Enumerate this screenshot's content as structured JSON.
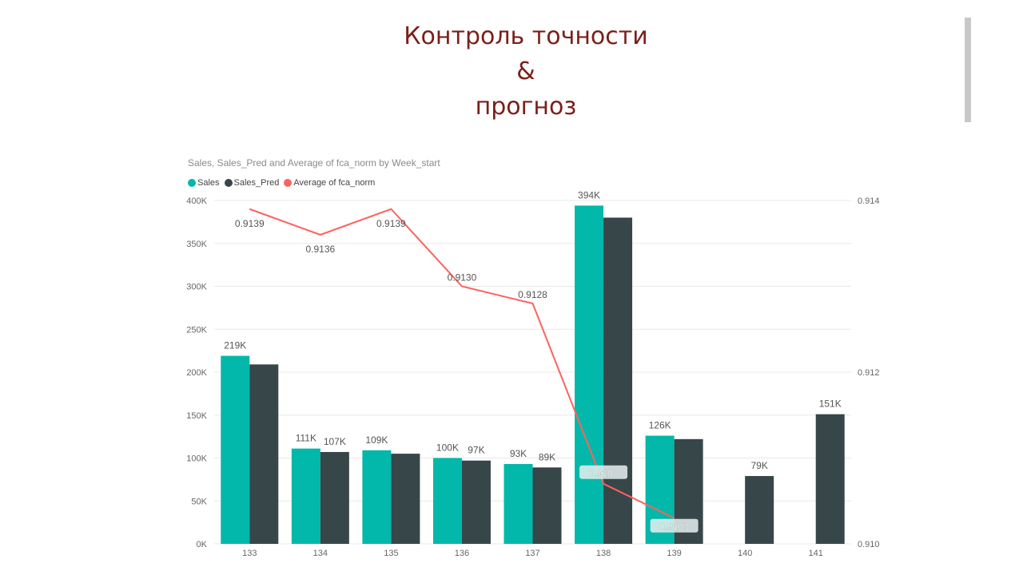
{
  "slide": {
    "title_lines": [
      "Контроль точности",
      "&",
      "прогноз"
    ]
  },
  "colors": {
    "sales": "#01b8aa",
    "sales_pred": "#374649",
    "fca": "#fd625e",
    "title": "#7a1f1a"
  },
  "chart_data": {
    "type": "bar",
    "title": "Sales, Sales_Pred and Average of fca_norm by Week_start",
    "categories": [
      "133",
      "134",
      "135",
      "136",
      "137",
      "138",
      "139",
      "140",
      "141"
    ],
    "series": [
      {
        "name": "Sales",
        "type": "bar",
        "axis": "left",
        "values": [
          219000,
          111000,
          109000,
          100000,
          93000,
          394000,
          126000,
          null,
          null
        ],
        "labels": [
          "219K",
          "111K",
          "109K",
          "100K",
          "93K",
          "394K",
          "126K",
          "",
          ""
        ]
      },
      {
        "name": "Sales_Pred",
        "type": "bar",
        "axis": "left",
        "values": [
          209000,
          107000,
          105000,
          97000,
          89000,
          380000,
          122000,
          79000,
          151000
        ],
        "labels": [
          "",
          "107K",
          "",
          "97K",
          "89K",
          "",
          "",
          "79K",
          "151K"
        ]
      },
      {
        "name": "Average of fca_norm",
        "type": "line",
        "axis": "right",
        "values": [
          0.9139,
          0.9136,
          0.9139,
          0.913,
          0.9128,
          0.9107,
          0.9103,
          null,
          null
        ],
        "labels": [
          "0.9139",
          "0.9136",
          "0.9139",
          "0.9130",
          "0.9128",
          "0.9107",
          "0.9103",
          "",
          ""
        ]
      }
    ],
    "y_left": {
      "ticks": [
        0,
        50000,
        100000,
        150000,
        200000,
        250000,
        300000,
        350000,
        400000
      ],
      "tick_labels": [
        "0K",
        "50K",
        "100K",
        "150K",
        "200K",
        "250K",
        "300K",
        "350K",
        "400K"
      ],
      "ylim": [
        0,
        400000
      ]
    },
    "y_right": {
      "ticks": [
        0.91,
        0.912,
        0.914
      ],
      "tick_labels": [
        "0.910",
        "0.912",
        "0.914"
      ],
      "ylim": [
        0.91,
        0.914
      ]
    },
    "grid": true,
    "legend_position": "top-left"
  }
}
